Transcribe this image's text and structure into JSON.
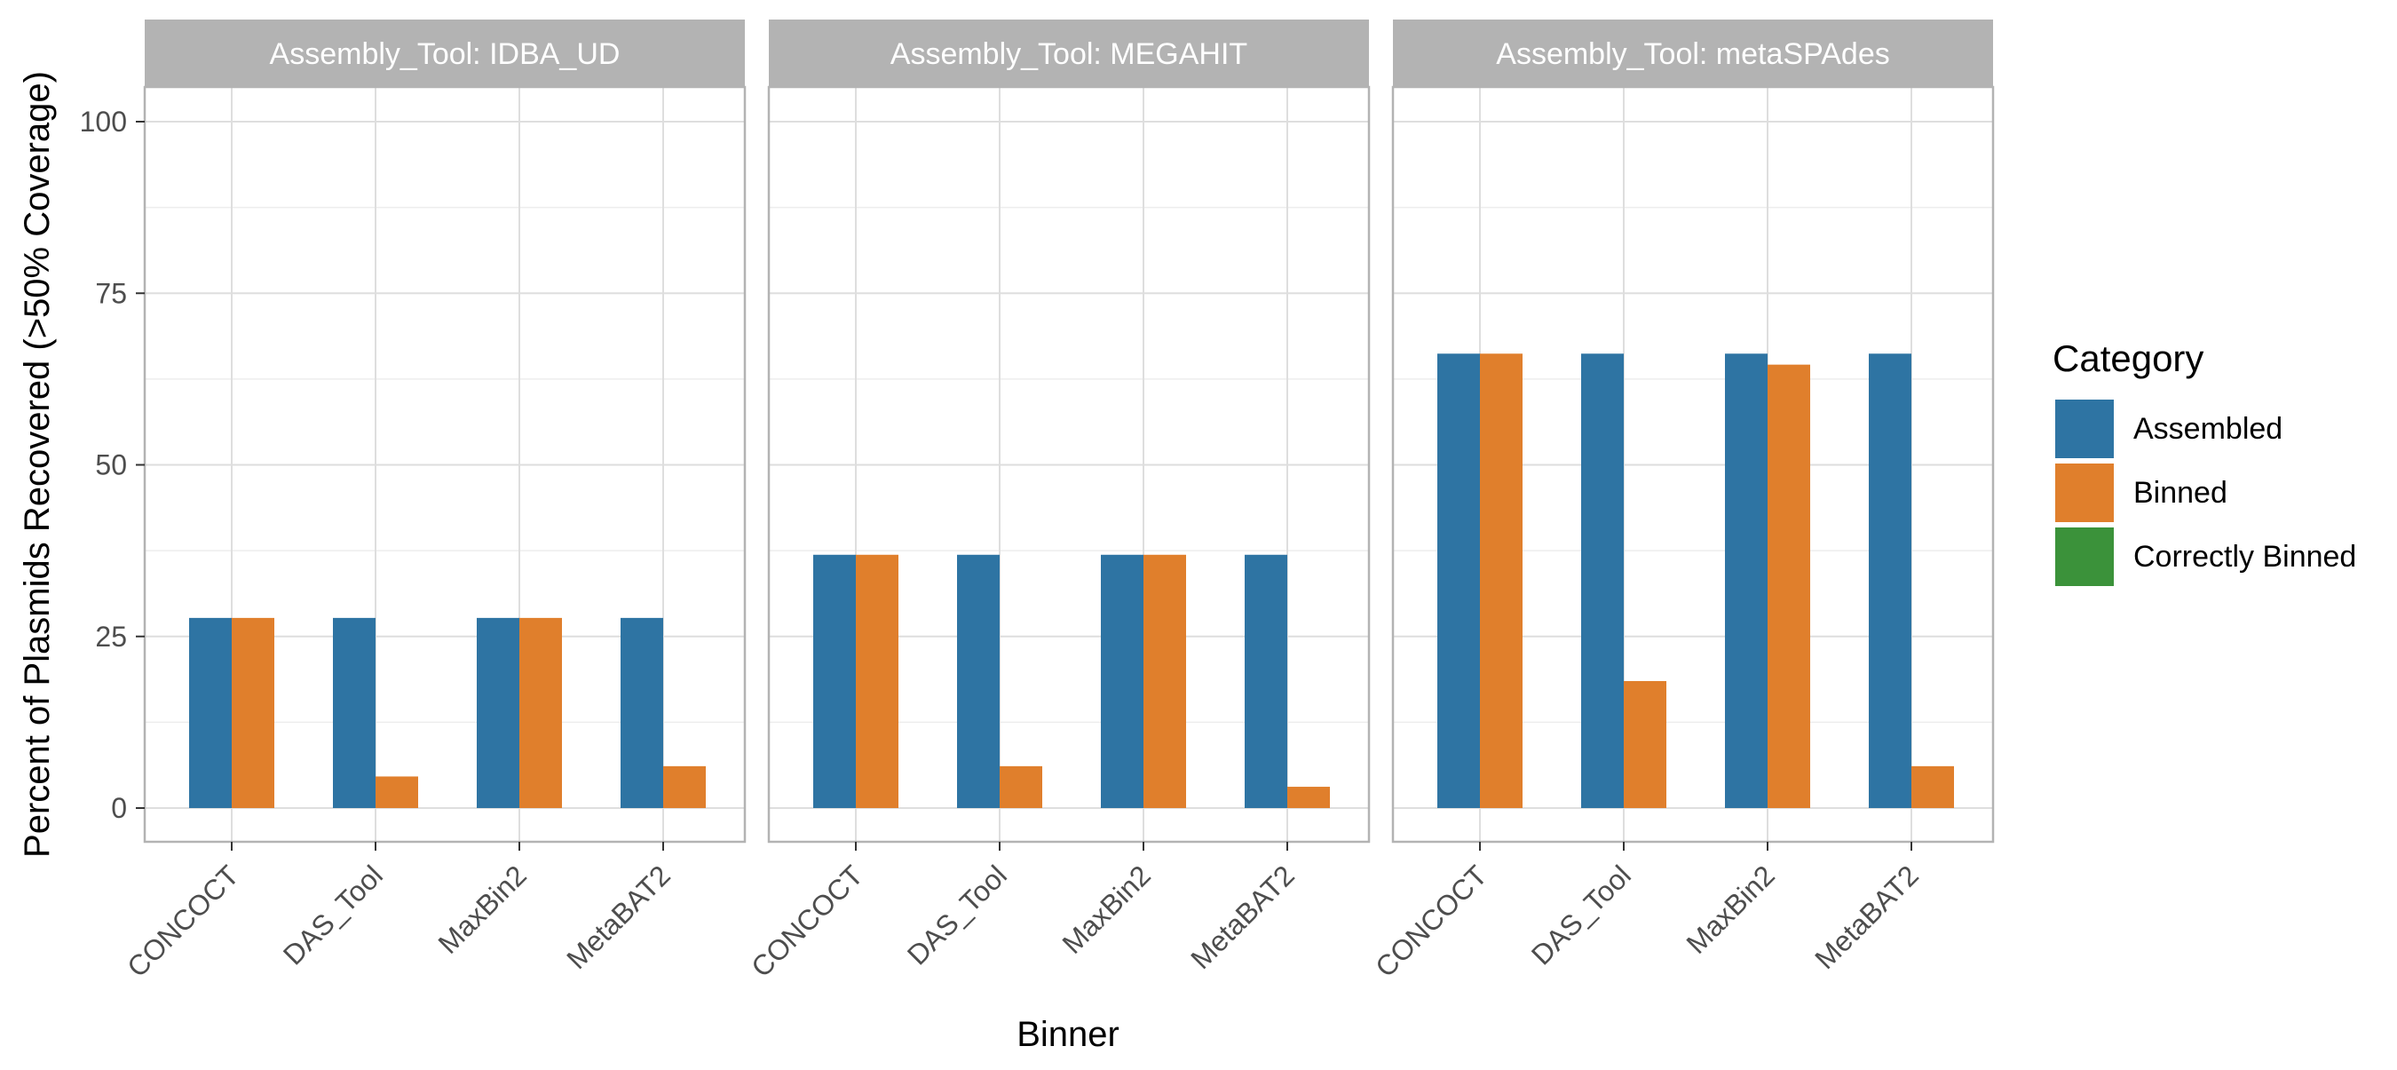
{
  "chart_data": {
    "type": "bar",
    "ylabel": "Percent of Plasmids Recovered (>50% Coverage)",
    "xlabel": "Binner",
    "ylim": [
      0,
      110
    ],
    "yticks": [
      0,
      25,
      50,
      75,
      100
    ],
    "grid": true,
    "facet_label_prefix": "Assembly_Tool: ",
    "legend": {
      "title": "Category",
      "placement": "right",
      "entries": [
        {
          "name": "Assembled",
          "color": "#2E74A3"
        },
        {
          "name": "Binned",
          "color": "#E07F2C"
        },
        {
          "name": "Correctly Binned",
          "color": "#3B923A"
        }
      ]
    },
    "categories": [
      "CONCOCT",
      "DAS_Tool",
      "MaxBin2",
      "MetaBAT2"
    ],
    "panels": [
      {
        "facet": "IDBA_UD",
        "series": [
          {
            "name": "Assembled",
            "values": [
              27.7,
              27.7,
              27.7,
              27.7
            ]
          },
          {
            "name": "Binned",
            "values": [
              27.7,
              4.6,
              27.7,
              6.1
            ]
          },
          {
            "name": "Correctly Binned",
            "values": [
              0,
              0,
              0,
              0
            ]
          }
        ]
      },
      {
        "facet": "MEGAHIT",
        "series": [
          {
            "name": "Assembled",
            "values": [
              36.9,
              36.9,
              36.9,
              36.9
            ]
          },
          {
            "name": "Binned",
            "values": [
              36.9,
              6.1,
              36.9,
              3.1
            ]
          },
          {
            "name": "Correctly Binned",
            "values": [
              0,
              0,
              0,
              0
            ]
          }
        ]
      },
      {
        "facet": "metaSPAdes",
        "series": [
          {
            "name": "Assembled",
            "values": [
              66.2,
              66.2,
              66.2,
              66.2
            ]
          },
          {
            "name": "Binned",
            "values": [
              66.2,
              18.5,
              64.6,
              6.1
            ]
          },
          {
            "name": "Correctly Binned",
            "values": [
              0,
              0,
              0,
              0
            ]
          }
        ]
      }
    ]
  }
}
